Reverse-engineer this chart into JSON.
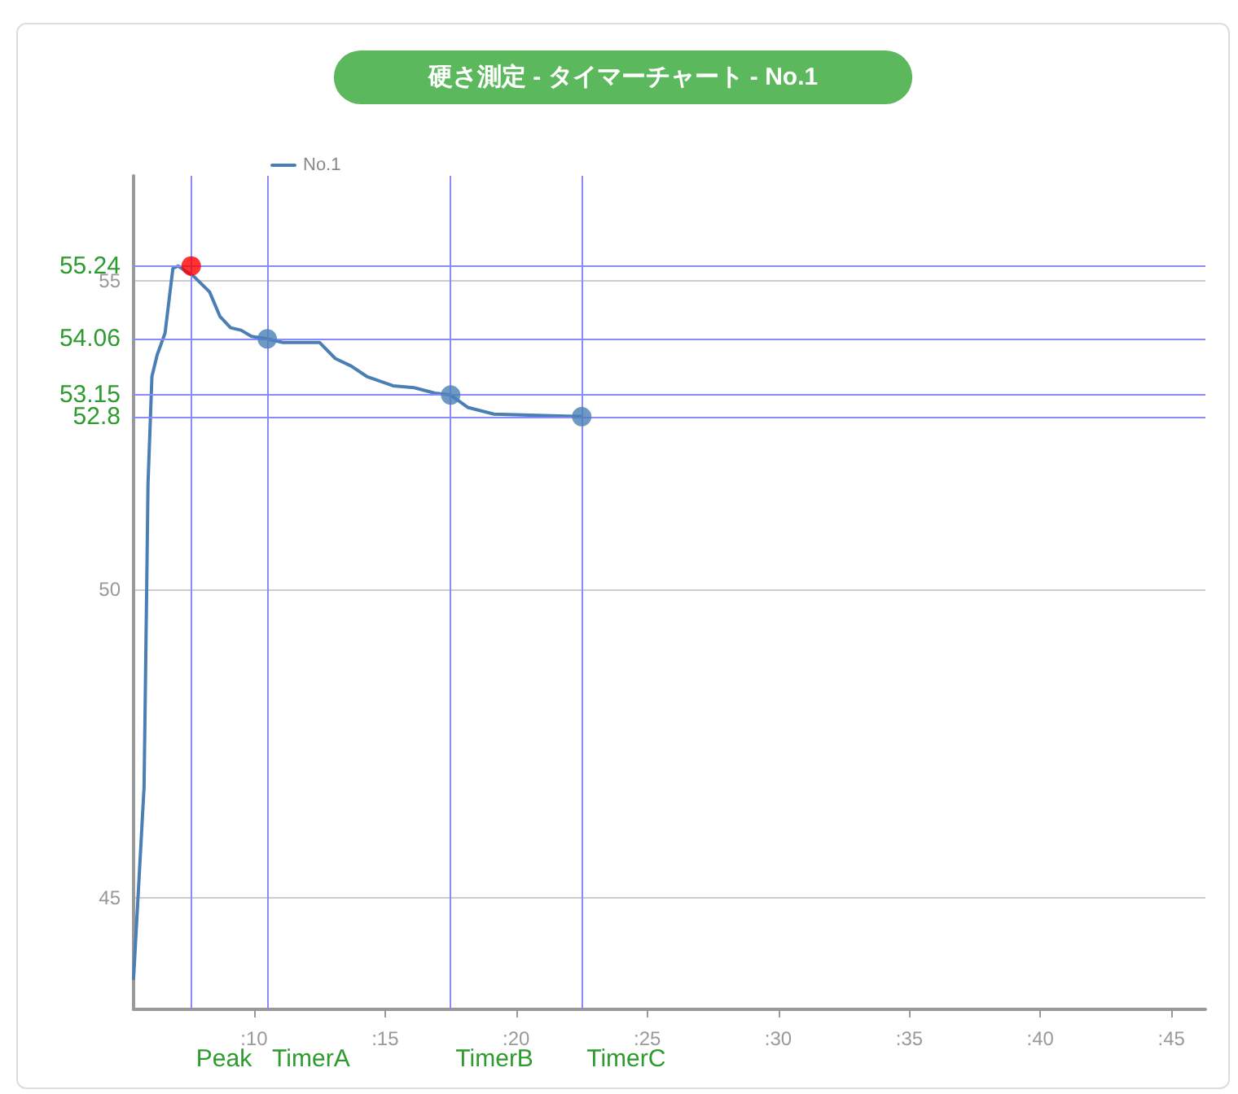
{
  "chart_data": {
    "type": "line",
    "title": "硬さ測定 - タイマーチャート - No.1",
    "series": [
      {
        "name": "No.1",
        "color": "#4a7fb5",
        "marker": "none",
        "x": [
          5.4,
          5.8,
          5.9,
          5.95,
          6.1,
          6.3,
          6.6,
          6.9,
          7.1,
          7.7,
          8.3,
          8.7,
          9.1,
          9.5,
          9.9,
          10.5,
          11.1,
          12.5,
          13.1,
          13.7,
          14.3,
          15.3,
          16.1,
          16.9,
          17.5,
          18.15,
          19.15,
          20.8,
          22.5
        ],
        "values": [
          43.7,
          46.8,
          50.0,
          51.7,
          53.45,
          53.8,
          54.15,
          55.2,
          55.24,
          55.07,
          54.82,
          54.42,
          54.24,
          54.2,
          54.1,
          54.06,
          54.0,
          54.0,
          53.74,
          53.62,
          53.45,
          53.3,
          53.27,
          53.18,
          53.15,
          52.95,
          52.84,
          52.82,
          52.8
        ]
      },
      {
        "type": "scatter",
        "marker": "circle",
        "x": [
          7.6,
          10.5,
          17.5,
          22.5
        ],
        "values": [
          55.24,
          54.06,
          53.15,
          52.8
        ],
        "colors": [
          "#ff0000",
          "#4a7fb5",
          "#4a7fb5",
          "#4a7fb5"
        ]
      }
    ],
    "xlim": [
      5.4,
      46.3
    ],
    "xticks": [
      {
        "value": 10,
        "label": ":10"
      },
      {
        "value": 15,
        "label": ":15"
      },
      {
        "value": 20,
        "label": ":20"
      },
      {
        "value": 25,
        "label": ":25"
      },
      {
        "value": 30,
        "label": ":30"
      },
      {
        "value": 35,
        "label": ":35"
      },
      {
        "value": 40,
        "label": ":40"
      },
      {
        "value": 45,
        "label": ":45"
      }
    ],
    "ylim": [
      43.2,
      56.7
    ],
    "yticks": [
      45,
      50,
      55
    ],
    "grid": "y",
    "legend": "top left",
    "ref_lines": [
      {
        "axis": "y",
        "value": 55.24,
        "label": "55.24",
        "color": "#8a8aff"
      },
      {
        "axis": "y",
        "value": 54.06,
        "label": "54.06",
        "color": "#8a8aff"
      },
      {
        "axis": "y",
        "value": 53.15,
        "label": "53.15",
        "color": "#8a8aff"
      },
      {
        "axis": "y",
        "value": 52.8,
        "label": "52.8",
        "color": "#8a8aff"
      },
      {
        "axis": "x",
        "value": 7.6,
        "label": "Peak",
        "color": "#8a8aff"
      },
      {
        "axis": "x",
        "value": 10.5,
        "label": "TimerA",
        "color": "#8a8aff"
      },
      {
        "axis": "x",
        "value": 17.5,
        "label": "TimerB",
        "color": "#8a8aff"
      },
      {
        "axis": "x",
        "value": 22.5,
        "label": "TimerC",
        "color": "#8a8aff"
      }
    ]
  }
}
